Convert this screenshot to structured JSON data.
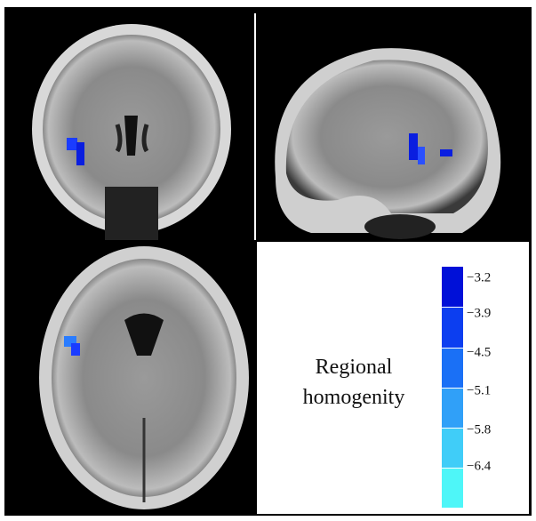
{
  "legend": {
    "title": [
      "Regional",
      "homogenity"
    ],
    "labels": [
      "−3.2",
      "−3.9",
      "−4.5",
      "−5.1",
      "−5.8",
      "−6.4"
    ]
  }
}
